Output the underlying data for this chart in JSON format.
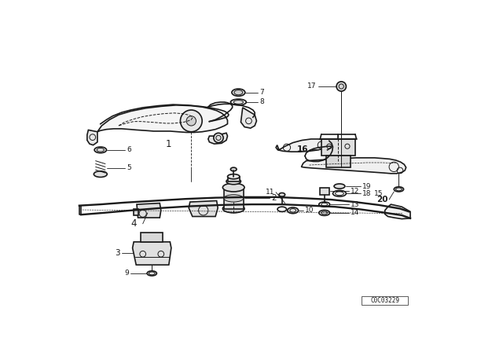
{
  "background_color": "#ffffff",
  "line_color": "#1a1a1a",
  "figure_width": 6.4,
  "figure_height": 4.48,
  "dpi": 100,
  "catalog_number": "C0C03229",
  "lw_main": 1.2,
  "lw_thin": 0.7,
  "lw_leader": 0.6,
  "fontsize_label": 7.5,
  "fontsize_num": 6.5
}
